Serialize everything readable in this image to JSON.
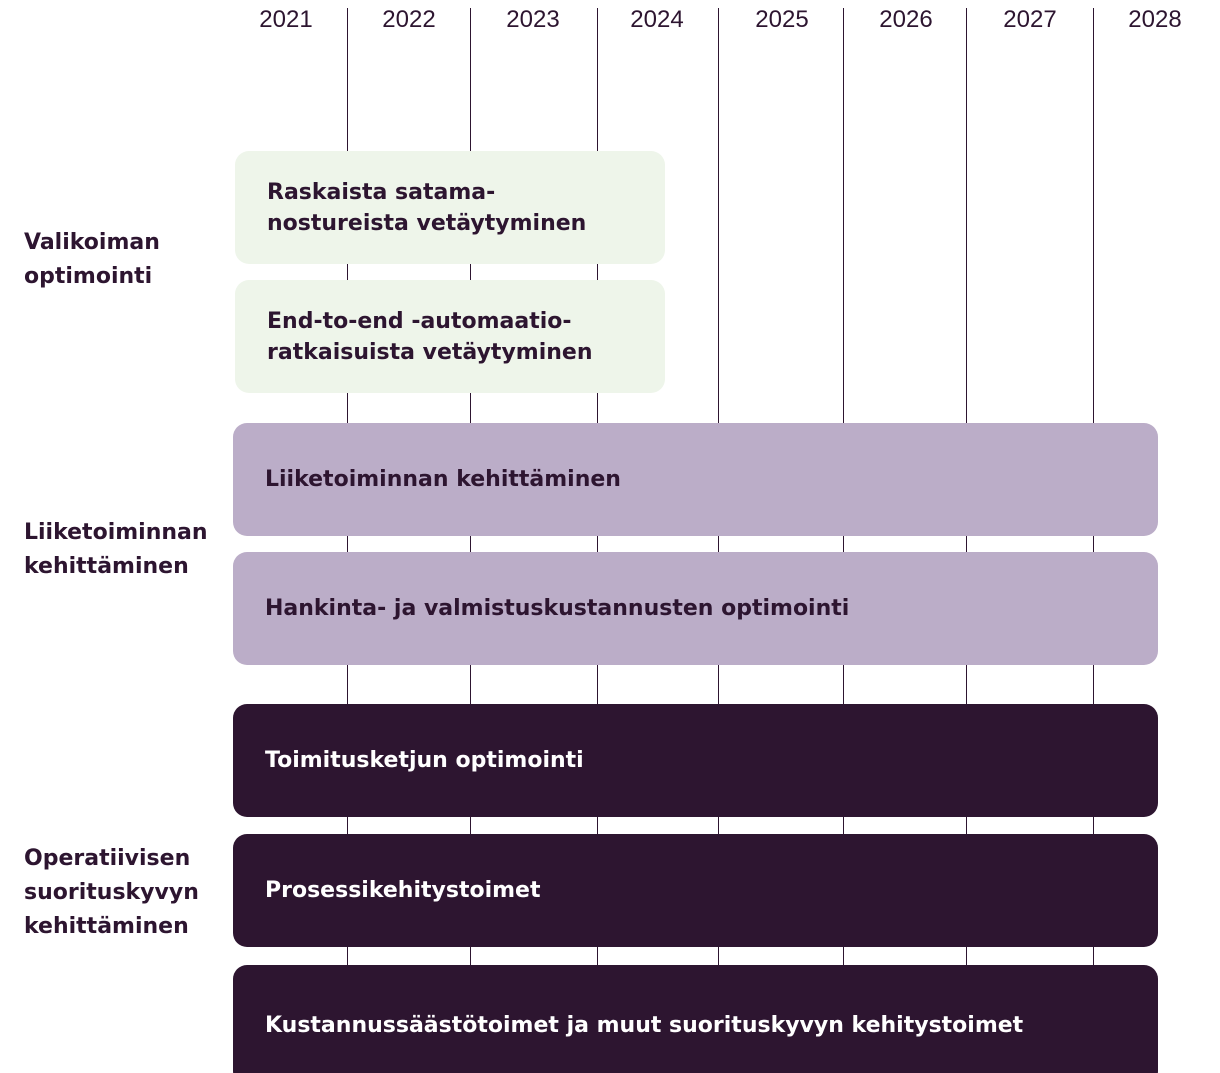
{
  "years": [
    "2021",
    "2022",
    "2023",
    "2024",
    "2025",
    "2026",
    "2027",
    "2028"
  ],
  "groups": [
    {
      "label": [
        "Valikoiman",
        "optimointi"
      ],
      "items": [
        [
          "Raskaista satama-",
          "nostureista vetäytyminen"
        ],
        [
          "End-to-end -automaatio-",
          "ratkaisuista vetäytyminen"
        ]
      ]
    },
    {
      "label": [
        "Liiketoiminnan",
        "kehittäminen"
      ],
      "items": [
        [
          "Liiketoiminnan kehittäminen"
        ],
        [
          "Hankinta- ja valmistuskustannusten optimointi"
        ]
      ]
    },
    {
      "label": [
        "Operatiivisen",
        "suorituskyvyn",
        "kehittäminen"
      ],
      "items": [
        [
          "Toimitusketjun optimointi"
        ],
        [
          "Prosessikehitystoimet"
        ],
        [
          "Kustannussäästötoimet ja muut suorituskyvyn kehitystoimet"
        ]
      ]
    }
  ]
}
